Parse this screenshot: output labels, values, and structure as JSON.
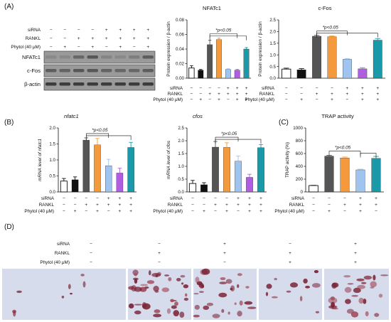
{
  "panels": {
    "A": "(A)",
    "B": "(B)",
    "C": "(C)",
    "D": "(D)"
  },
  "blot": {
    "row_labels": [
      "siRNA",
      "RANKL",
      "Phytol (40 μM)"
    ],
    "signs": [
      [
        "−",
        "−",
        "−",
        "−",
        "+",
        "+",
        "+",
        "+"
      ],
      [
        "−",
        "−",
        "+",
        "+",
        "+",
        "+",
        "+",
        "+"
      ],
      [
        "−",
        "+",
        "−",
        "+",
        "−",
        "+",
        "−",
        "+"
      ]
    ],
    "bands": [
      "NFATc1",
      "c-Fos",
      "β-actin"
    ],
    "colors": {
      "band": "#2b2b2b",
      "bg": "#9a9a9a"
    }
  },
  "cond_labels": [
    "siRNA",
    "RANKL",
    "Phytol (40 μM)"
  ],
  "series_colors": [
    "#ffffff",
    "#111111",
    "#555555",
    "#f59a3c",
    "#9fc4ef",
    "#b05ee0",
    "#1a9aa8"
  ],
  "signs6": [
    [
      "−",
      "−",
      "−",
      "+",
      "+",
      "+"
    ],
    [
      "−",
      "−",
      "+",
      "+",
      "+",
      "+"
    ],
    [
      "−",
      "+",
      "−",
      "+",
      "−",
      "+"
    ]
  ],
  "signs7": [
    [
      "−",
      "−",
      "−",
      "−",
      "+",
      "+",
      "+"
    ],
    [
      "−",
      "−",
      "+",
      "+",
      "+",
      "+",
      "+"
    ],
    [
      "−",
      "+",
      "−",
      "+",
      "−",
      "+",
      "+"
    ]
  ],
  "micro": {
    "row_labels": [
      "siRNA",
      "RANKL",
      "Phytol (40 μM)"
    ],
    "signs": [
      [
        "−",
        "−",
        "+",
        "−",
        "+"
      ],
      [
        "−",
        "+",
        "+",
        "+",
        "+"
      ],
      [
        "−",
        "−",
        "−",
        "+",
        "+"
      ]
    ]
  },
  "chart_data": [
    {
      "type": "bar",
      "id": "nfatc1_protein",
      "title": "NFATc1",
      "ylabel": "Protein expression / β-actin",
      "ylim": [
        0,
        0.08
      ],
      "yticks": [
        "0.00",
        "0.02",
        "0.04",
        "0.06",
        "0.08"
      ],
      "values": [
        0.014,
        0.011,
        0.046,
        0.053,
        0.012,
        0.011,
        0.04
      ],
      "errors": [
        0.003,
        0.001,
        0.006,
        0.002,
        0.001,
        0.001,
        0.002
      ],
      "annotation": "*p<0.05"
    },
    {
      "type": "bar",
      "id": "cfos_protein",
      "title": "c-Fos",
      "ylabel": "Protein expression / β-actin",
      "ylim": [
        0,
        2.5
      ],
      "yticks": [
        "0.0",
        "0.5",
        "1.0",
        "1.5",
        "2.0",
        "2.5"
      ],
      "values": [
        0.39,
        0.36,
        1.8,
        1.78,
        0.81,
        0.4,
        1.63
      ],
      "errors": [
        0.04,
        0.05,
        0.04,
        0.03,
        0.03,
        0.05,
        0.07
      ],
      "annotation": "*p<0.05"
    },
    {
      "type": "bar",
      "id": "nfatc1_mrna",
      "title": "nfatc1",
      "ylabel": "mRNA level of nfatc1",
      "ylim": [
        0,
        2.0
      ],
      "yticks": [
        "0.0",
        "0.5",
        "1.0",
        "1.5",
        "2.0"
      ],
      "values": [
        0.34,
        0.38,
        1.62,
        1.47,
        0.82,
        0.59,
        1.39
      ],
      "errors": [
        0.08,
        0.09,
        0.07,
        0.2,
        0.2,
        0.15,
        0.16
      ],
      "annotation": "*p<0.05"
    },
    {
      "type": "bar",
      "id": "cfos_mrna",
      "title": "cfos",
      "ylabel": "mRNA level of cfos",
      "ylim": [
        0,
        2.5
      ],
      "yticks": [
        "0.0",
        "0.5",
        "1.0",
        "1.5",
        "2.0",
        "2.5"
      ],
      "values": [
        0.33,
        0.28,
        1.75,
        1.74,
        1.2,
        0.57,
        1.73
      ],
      "errors": [
        0.12,
        0.08,
        0.22,
        0.18,
        0.2,
        0.12,
        0.12
      ],
      "annotation": "*p<0.05"
    },
    {
      "type": "bar",
      "id": "trap_activity",
      "title": "TRAP activity",
      "ylabel": "TRAP activity (%)",
      "ylim": [
        0,
        1000
      ],
      "yticks": [
        "0",
        "200",
        "400",
        "600",
        "800",
        "1000"
      ],
      "values": [
        100,
        560,
        530,
        345,
        525
      ],
      "errors": [
        3,
        12,
        15,
        10,
        30
      ],
      "colors": [
        "#ffffff",
        "#555555",
        "#f59a3c",
        "#9fc4ef",
        "#1a9aa8"
      ],
      "annotation": "*p<0.05"
    }
  ]
}
